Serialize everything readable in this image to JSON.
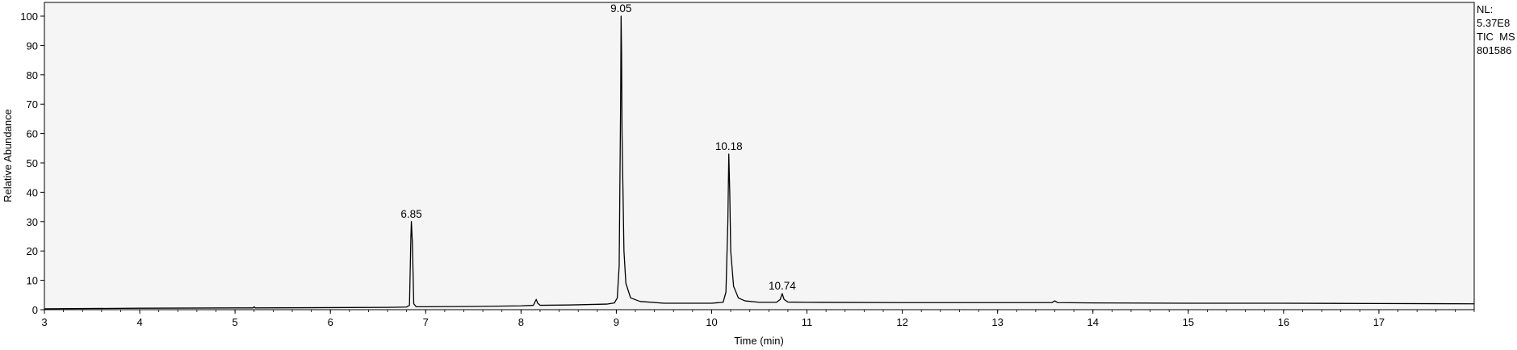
{
  "chart_data": {
    "type": "line",
    "title": "",
    "xlabel": "Time (min)",
    "ylabel": "Relative Abundance",
    "xlim": [
      3,
      18
    ],
    "ylim": [
      0,
      100
    ],
    "x_ticks": [
      3,
      4,
      5,
      6,
      7,
      8,
      9,
      10,
      11,
      12,
      13,
      14,
      15,
      16,
      17
    ],
    "y_ticks": [
      0,
      10,
      20,
      30,
      40,
      50,
      60,
      70,
      80,
      90,
      100
    ],
    "grid": false,
    "series": [
      {
        "x": [
          3.0,
          4.0,
          5.0,
          5.19,
          5.2,
          5.21,
          6.0,
          6.6,
          6.8,
          6.83,
          6.845,
          6.85,
          6.86,
          6.875,
          6.9,
          7.0,
          7.5,
          8.0,
          8.13,
          8.145,
          8.16,
          8.175,
          8.2,
          8.5,
          8.9,
          8.98,
          9.01,
          9.03,
          9.045,
          9.05,
          9.055,
          9.06,
          9.08,
          9.1,
          9.15,
          9.25,
          9.5,
          10.0,
          10.12,
          10.15,
          10.17,
          10.18,
          10.19,
          10.2,
          10.23,
          10.28,
          10.35,
          10.5,
          10.68,
          10.72,
          10.74,
          10.76,
          10.8,
          11.0,
          12.0,
          13.0,
          13.57,
          13.6,
          13.63,
          14.0,
          15.0,
          16.0,
          17.0,
          18.0
        ],
        "y": [
          0.3,
          0.5,
          0.6,
          0.6,
          1.0,
          0.6,
          0.7,
          0.8,
          0.9,
          1.5,
          25.0,
          30.0,
          23.0,
          2.0,
          1.0,
          1.0,
          1.1,
          1.3,
          1.5,
          2.5,
          3.5,
          2.2,
          1.5,
          1.6,
          1.9,
          2.3,
          4.0,
          15.0,
          70.0,
          100.0,
          87.0,
          60.0,
          20.0,
          9.0,
          4.0,
          2.8,
          2.2,
          2.2,
          2.5,
          6.0,
          30.0,
          53.0,
          40.0,
          20.0,
          8.0,
          4.0,
          3.0,
          2.5,
          2.5,
          3.5,
          5.5,
          3.5,
          2.6,
          2.5,
          2.4,
          2.4,
          2.4,
          3.0,
          2.4,
          2.3,
          2.2,
          2.2,
          2.1,
          2.0
        ]
      }
    ],
    "annotations": [
      {
        "x": 6.85,
        "y": 30,
        "text": "6.85"
      },
      {
        "x": 9.05,
        "y": 100,
        "text": "9.05"
      },
      {
        "x": 10.18,
        "y": 53,
        "text": "10.18"
      },
      {
        "x": 10.74,
        "y": 5.5,
        "text": "10.74"
      }
    ],
    "info": {
      "nl_label": "NL:",
      "nl_value": "5.37E8",
      "trace_label": "TIC  MS",
      "sample_id": "801586"
    },
    "colors": {
      "plot_background": "#f5f5f5",
      "line": "#000000"
    }
  }
}
